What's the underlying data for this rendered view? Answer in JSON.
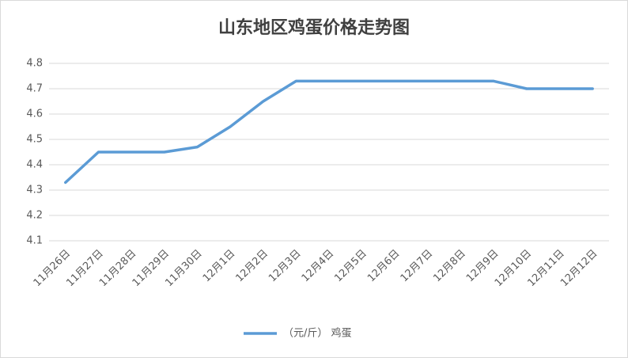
{
  "chart_data": {
    "type": "line",
    "title": "山东地区鸡蛋价格走势图",
    "categories": [
      "11月26日",
      "11月27日",
      "11月28日",
      "11月29日",
      "11月30日",
      "12月1日",
      "12月2日",
      "12月3日",
      "12月4日",
      "12月5日",
      "12月6日",
      "12月7日",
      "12月8日",
      "12月9日",
      "12月10日",
      "12月11日",
      "12月12日"
    ],
    "series": [
      {
        "name": "（元/斤） 鸡蛋",
        "color": "#5b9bd5",
        "values": [
          4.33,
          4.45,
          4.45,
          4.45,
          4.47,
          4.55,
          4.65,
          4.73,
          4.73,
          4.73,
          4.73,
          4.73,
          4.73,
          4.73,
          4.7,
          4.7,
          4.7
        ]
      }
    ],
    "ylim": [
      4.1,
      4.8
    ],
    "yticks": [
      4.1,
      4.2,
      4.3,
      4.4,
      4.5,
      4.6,
      4.7,
      4.8
    ],
    "grid": true,
    "legend": "bottom"
  }
}
